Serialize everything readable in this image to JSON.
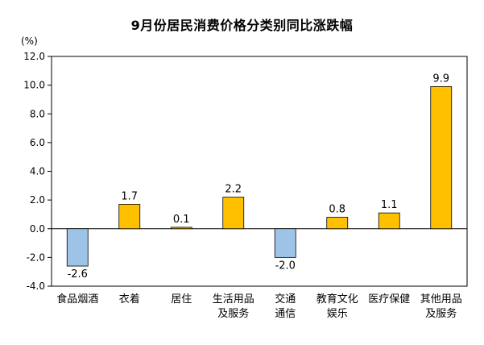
{
  "chart_data": {
    "type": "bar",
    "title": "9月份居民消费价格分类别同比涨跌幅",
    "unit_label": "(%)",
    "categories": [
      [
        "食品烟酒"
      ],
      [
        "衣着"
      ],
      [
        "居住"
      ],
      [
        "生活用品",
        "及服务"
      ],
      [
        "交通",
        "通信"
      ],
      [
        "教育文化",
        "娱乐"
      ],
      [
        "医疗保健"
      ],
      [
        "其他用品",
        "及服务"
      ]
    ],
    "values": [
      -2.6,
      1.7,
      0.1,
      2.2,
      -2.0,
      0.8,
      1.1,
      9.9
    ],
    "value_labels": [
      "-2.6",
      "1.7",
      "0.1",
      "2.2",
      "-2.0",
      "0.8",
      "1.1",
      "9.9"
    ],
    "ylim": [
      -4.0,
      12.0
    ],
    "yticks": [
      12.0,
      10.0,
      8.0,
      6.0,
      4.0,
      2.0,
      0.0,
      -2.0,
      -4.0
    ],
    "ytick_labels": [
      "12.0",
      "10.0",
      "8.0",
      "6.0",
      "4.0",
      "2.0",
      "0.0",
      "-2.0",
      "-4.0"
    ],
    "grid": false,
    "legend": "none",
    "colors": {
      "positive": "#FFC000",
      "negative": "#9DC3E6",
      "bar_edge": "#000000",
      "axis": "#000000"
    }
  }
}
